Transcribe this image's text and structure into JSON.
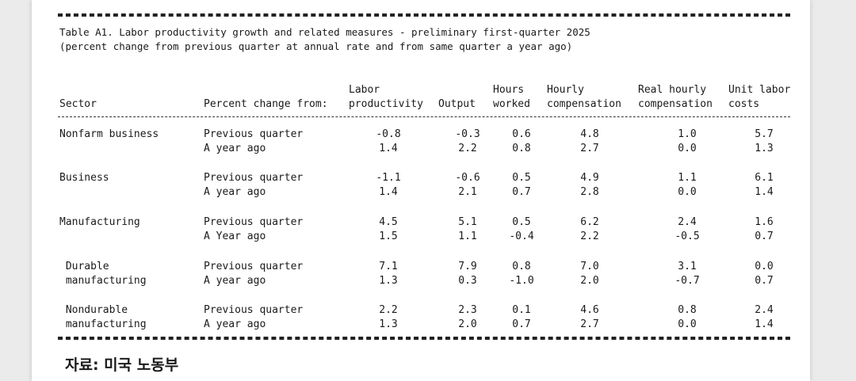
{
  "table": {
    "title_line1": "Table A1. Labor productivity growth and related measures - preliminary first-quarter 2025",
    "title_line2": "(percent change from previous quarter at annual rate and from same quarter a year ago)",
    "headers": {
      "sector": "Sector",
      "percent_change": "Percent change from:",
      "labor_productivity_1": "Labor",
      "labor_productivity_2": "productivity",
      "output": "Output",
      "hours_1": "Hours",
      "hours_2": "worked",
      "hourly_comp_1": "Hourly",
      "hourly_comp_2": "compensation",
      "real_hourly_1": "Real hourly",
      "real_hourly_2": "compensation",
      "unit_labor_1": "Unit labor",
      "unit_labor_2": "costs"
    },
    "rows": [
      {
        "sector1": "Nonfarm business",
        "sector2": "",
        "p1": "Previous quarter",
        "p2": "A year ago",
        "lp": [
          "-0.8",
          "1.4"
        ],
        "out": [
          "-0.3",
          "2.2"
        ],
        "hrs": [
          "0.6",
          "0.8"
        ],
        "hc": [
          "4.8",
          "2.7"
        ],
        "rhc": [
          "1.0",
          "0.0"
        ],
        "ulc": [
          "5.7",
          "1.3"
        ]
      },
      {
        "sector1": "Business",
        "sector2": "",
        "p1": "Previous quarter",
        "p2": "A year ago",
        "lp": [
          "-1.1",
          "1.4"
        ],
        "out": [
          "-0.6",
          "2.1"
        ],
        "hrs": [
          "0.5",
          "0.7"
        ],
        "hc": [
          "4.9",
          "2.8"
        ],
        "rhc": [
          "1.1",
          "0.0"
        ],
        "ulc": [
          "6.1",
          "1.4"
        ]
      },
      {
        "sector1": "Manufacturing",
        "sector2": "",
        "p1": "Previous quarter",
        "p2": "A Year ago",
        "lp": [
          "4.5",
          "1.5"
        ],
        "out": [
          "5.1",
          "1.1"
        ],
        "hrs": [
          "0.5",
          "-0.4"
        ],
        "hc": [
          "6.2",
          "2.2"
        ],
        "rhc": [
          "2.4",
          "-0.5"
        ],
        "ulc": [
          "1.6",
          "0.7"
        ]
      },
      {
        "sector1": " Durable",
        "sector2": " manufacturing",
        "p1": "Previous quarter",
        "p2": "A year ago",
        "lp": [
          "7.1",
          "1.3"
        ],
        "out": [
          "7.9",
          "0.3"
        ],
        "hrs": [
          "0.8",
          "-1.0"
        ],
        "hc": [
          "7.0",
          "2.0"
        ],
        "rhc": [
          "3.1",
          "-0.7"
        ],
        "ulc": [
          "0.0",
          "0.7"
        ]
      },
      {
        "sector1": " Nondurable",
        "sector2": " manufacturing",
        "p1": "Previous quarter",
        "p2": "A year ago",
        "lp": [
          "2.2",
          "1.3"
        ],
        "out": [
          "2.3",
          "2.0"
        ],
        "hrs": [
          "0.1",
          "0.7"
        ],
        "hc": [
          "4.6",
          "2.7"
        ],
        "rhc": [
          "0.8",
          "0.0"
        ],
        "ulc": [
          "2.4",
          "1.4"
        ]
      }
    ]
  },
  "source": "자료: 미국 노동부"
}
